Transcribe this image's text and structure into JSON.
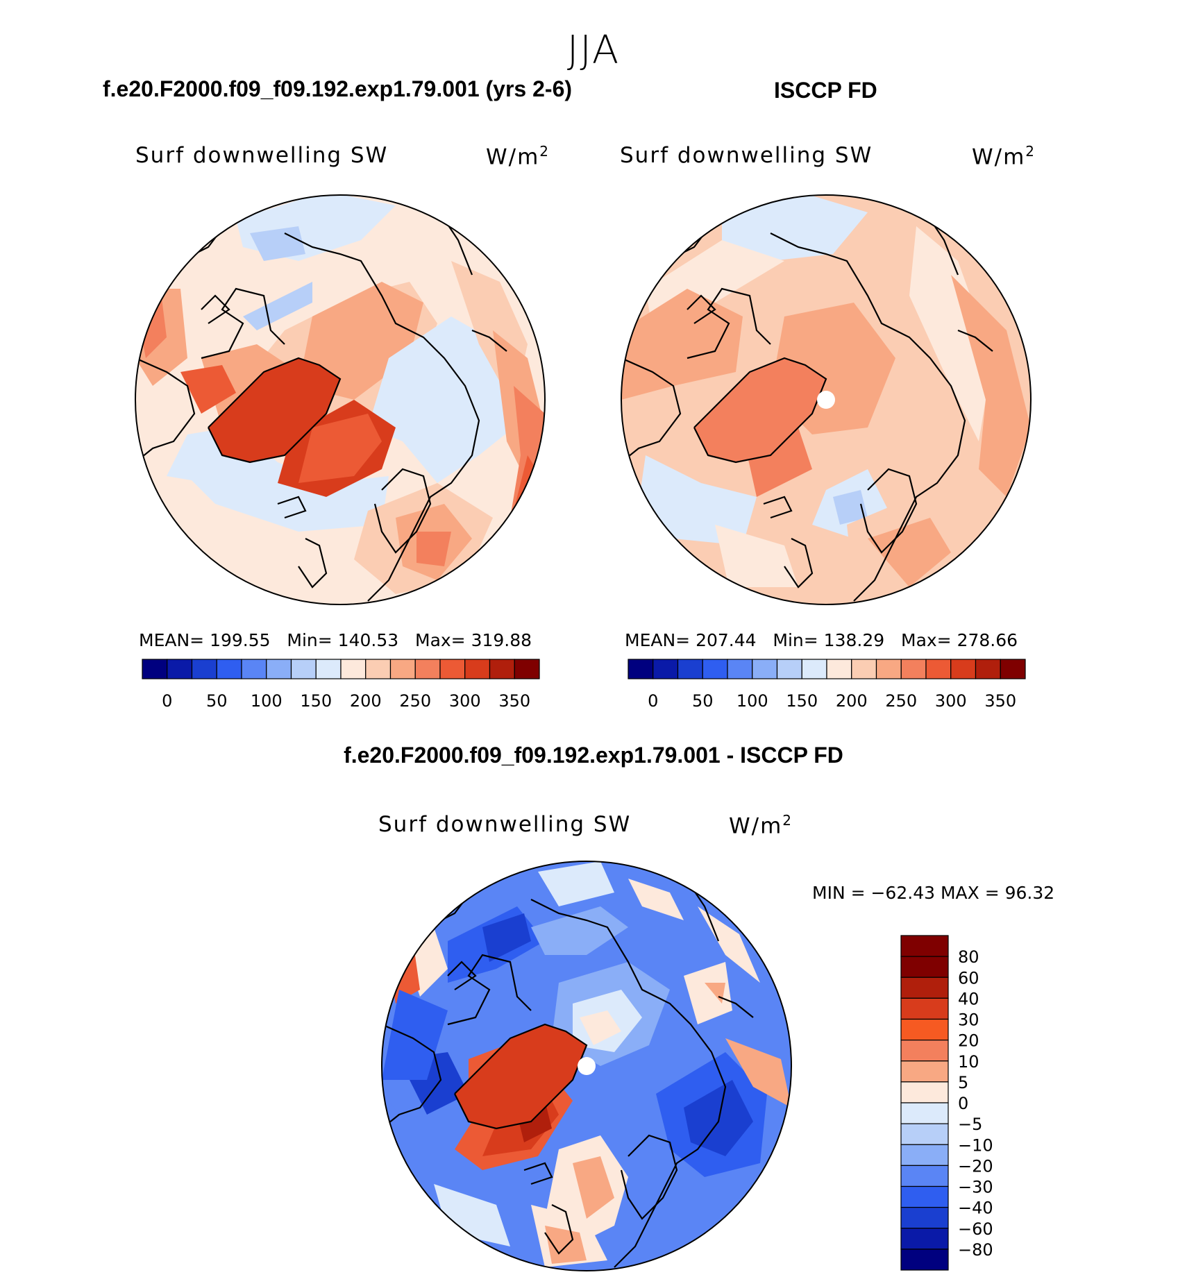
{
  "figure": {
    "season": "JJA",
    "panels": [
      {
        "case_title": "f.e20.F2000.f09_f09.192.exp1.79.001 (yrs 2-6)",
        "variable": "Surf downwelling SW",
        "units_base": "W/m",
        "units_exp": "2",
        "stats": {
          "mean_label": "MEAN=",
          "mean": "199.55",
          "min_label": "Min=",
          "min": "140.53",
          "max_label": "Max=",
          "max": "319.88"
        }
      },
      {
        "case_title": "ISCCP FD",
        "variable": "Surf downwelling SW",
        "units_base": "W/m",
        "units_exp": "2",
        "stats": {
          "mean_label": "MEAN=",
          "mean": "207.44",
          "min_label": "Min=",
          "min": "138.29",
          "max_label": "Max=",
          "max": "278.66"
        }
      }
    ],
    "diff_panel": {
      "case_title": "f.e20.F2000.f09_f09.192.exp1.79.001 - ISCCP FD",
      "variable": "Surf downwelling SW",
      "units_base": "W/m",
      "units_exp": "2",
      "minmax": "MIN = −62.43 MAX =  96.32"
    }
  },
  "colorbar_main": {
    "colors": [
      "#00007f",
      "#0a1aa8",
      "#1a3fd0",
      "#2f5ef0",
      "#5a85f5",
      "#8aaef7",
      "#b7cff8",
      "#dceafb",
      "#fde9dc",
      "#fbcdb3",
      "#f8a883",
      "#f3805d",
      "#ec5a35",
      "#d83c1c",
      "#b01f0c",
      "#7f0000"
    ],
    "tick_labels": [
      "0",
      "50",
      "100",
      "150",
      "200",
      "250",
      "300",
      "350"
    ]
  },
  "colorbar_diff": {
    "colors": [
      "#7f0000",
      "#b01f0c",
      "#d83c1c",
      "#f65a22",
      "#f3805d",
      "#f8a883",
      "#fde9dc",
      "#dceafb",
      "#b7cff8",
      "#8aaef7",
      "#5a85f5",
      "#2f5ef0",
      "#1a3fd0",
      "#0a1aa8",
      "#00007f"
    ],
    "tick_labels": [
      "80",
      "60",
      "40",
      "30",
      "20",
      "10",
      "5",
      "0",
      "−5",
      "−10",
      "−20",
      "−30",
      "−40",
      "−60",
      "−80"
    ]
  },
  "map_palette": {
    "seq": [
      "#dceafb",
      "#fde9dc",
      "#fbcdb3",
      "#f8a883",
      "#f3805d",
      "#ec5a35",
      "#d83c1c",
      "#b7cff8"
    ],
    "div": [
      "#dceafb",
      "#b7cff8",
      "#8aaef7",
      "#5a85f5",
      "#2f5ef0",
      "#1a3fd0",
      "#fde9dc",
      "#f8a883",
      "#ec5a35",
      "#d83c1c",
      "#b01f0c"
    ]
  }
}
